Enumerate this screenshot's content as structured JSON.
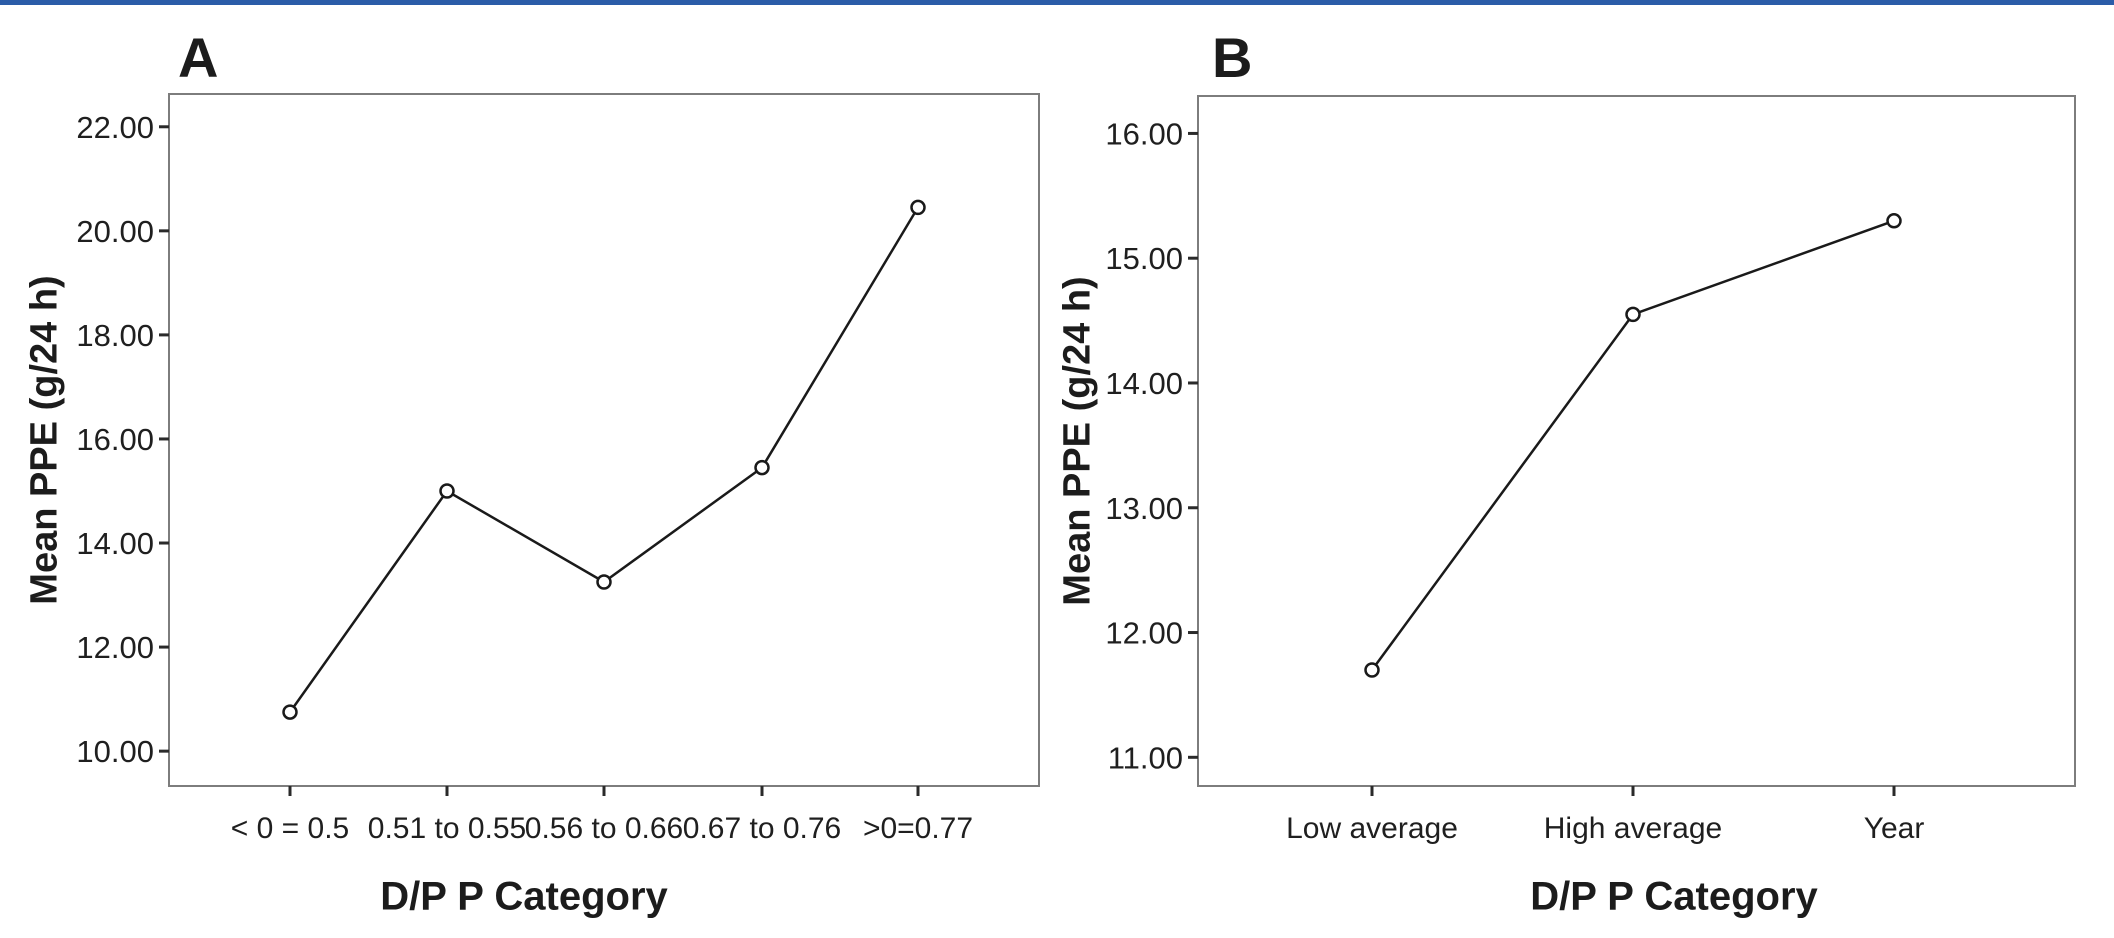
{
  "figure": {
    "background_color": "#ffffff",
    "top_border_color": "#2b5ca8",
    "text_color": "#1c1c1c",
    "frame_color": "#7d7d7d",
    "tick_color": "#2a2a2a"
  },
  "panels": [
    {
      "panel_label": "A",
      "x_axis_title": "D/P P Category",
      "y_axis_title": "Mean PPE (g/24 h)"
    },
    {
      "panel_label": "B",
      "x_axis_title": "D/P P Category",
      "y_axis_title": "Mean PPE (g/24 h)"
    }
  ],
  "chart_data": [
    {
      "type": "line",
      "panel": "A",
      "categories": [
        "< 0 = 0.5",
        "0.51 to 0.55",
        "0.56 to 0.66",
        "0.67 to 0.76",
        ">0=0.77"
      ],
      "values": [
        10.75,
        15.0,
        13.25,
        15.45,
        20.45
      ],
      "xlabel": "D/P P Category",
      "ylabel": "Mean PPE (g/24 h)",
      "ylim": [
        9.33,
        22.63
      ],
      "yticks": [
        10,
        12,
        14,
        16,
        18,
        20,
        22
      ],
      "ytick_labels": [
        "10.00",
        "12.00",
        "14.00",
        "16.00",
        "18.00",
        "20.00",
        "22.00"
      ],
      "grid": false,
      "legend": "none",
      "marker": "open-circle",
      "line_color": "#1a1a1a"
    },
    {
      "type": "line",
      "panel": "B",
      "categories": [
        "Low average",
        "High average",
        "Year"
      ],
      "values": [
        11.7,
        14.55,
        15.3
      ],
      "xlabel": "D/P P Category",
      "ylabel": "Mean PPE (g/24 h)",
      "ylim": [
        10.77,
        16.3
      ],
      "yticks": [
        11,
        12,
        13,
        14,
        15,
        16
      ],
      "ytick_labels": [
        "11.00",
        "12.00",
        "13.00",
        "14.00",
        "15.00",
        "16.00"
      ],
      "grid": false,
      "legend": "none",
      "marker": "open-circle",
      "line_color": "#1a1a1a"
    }
  ]
}
